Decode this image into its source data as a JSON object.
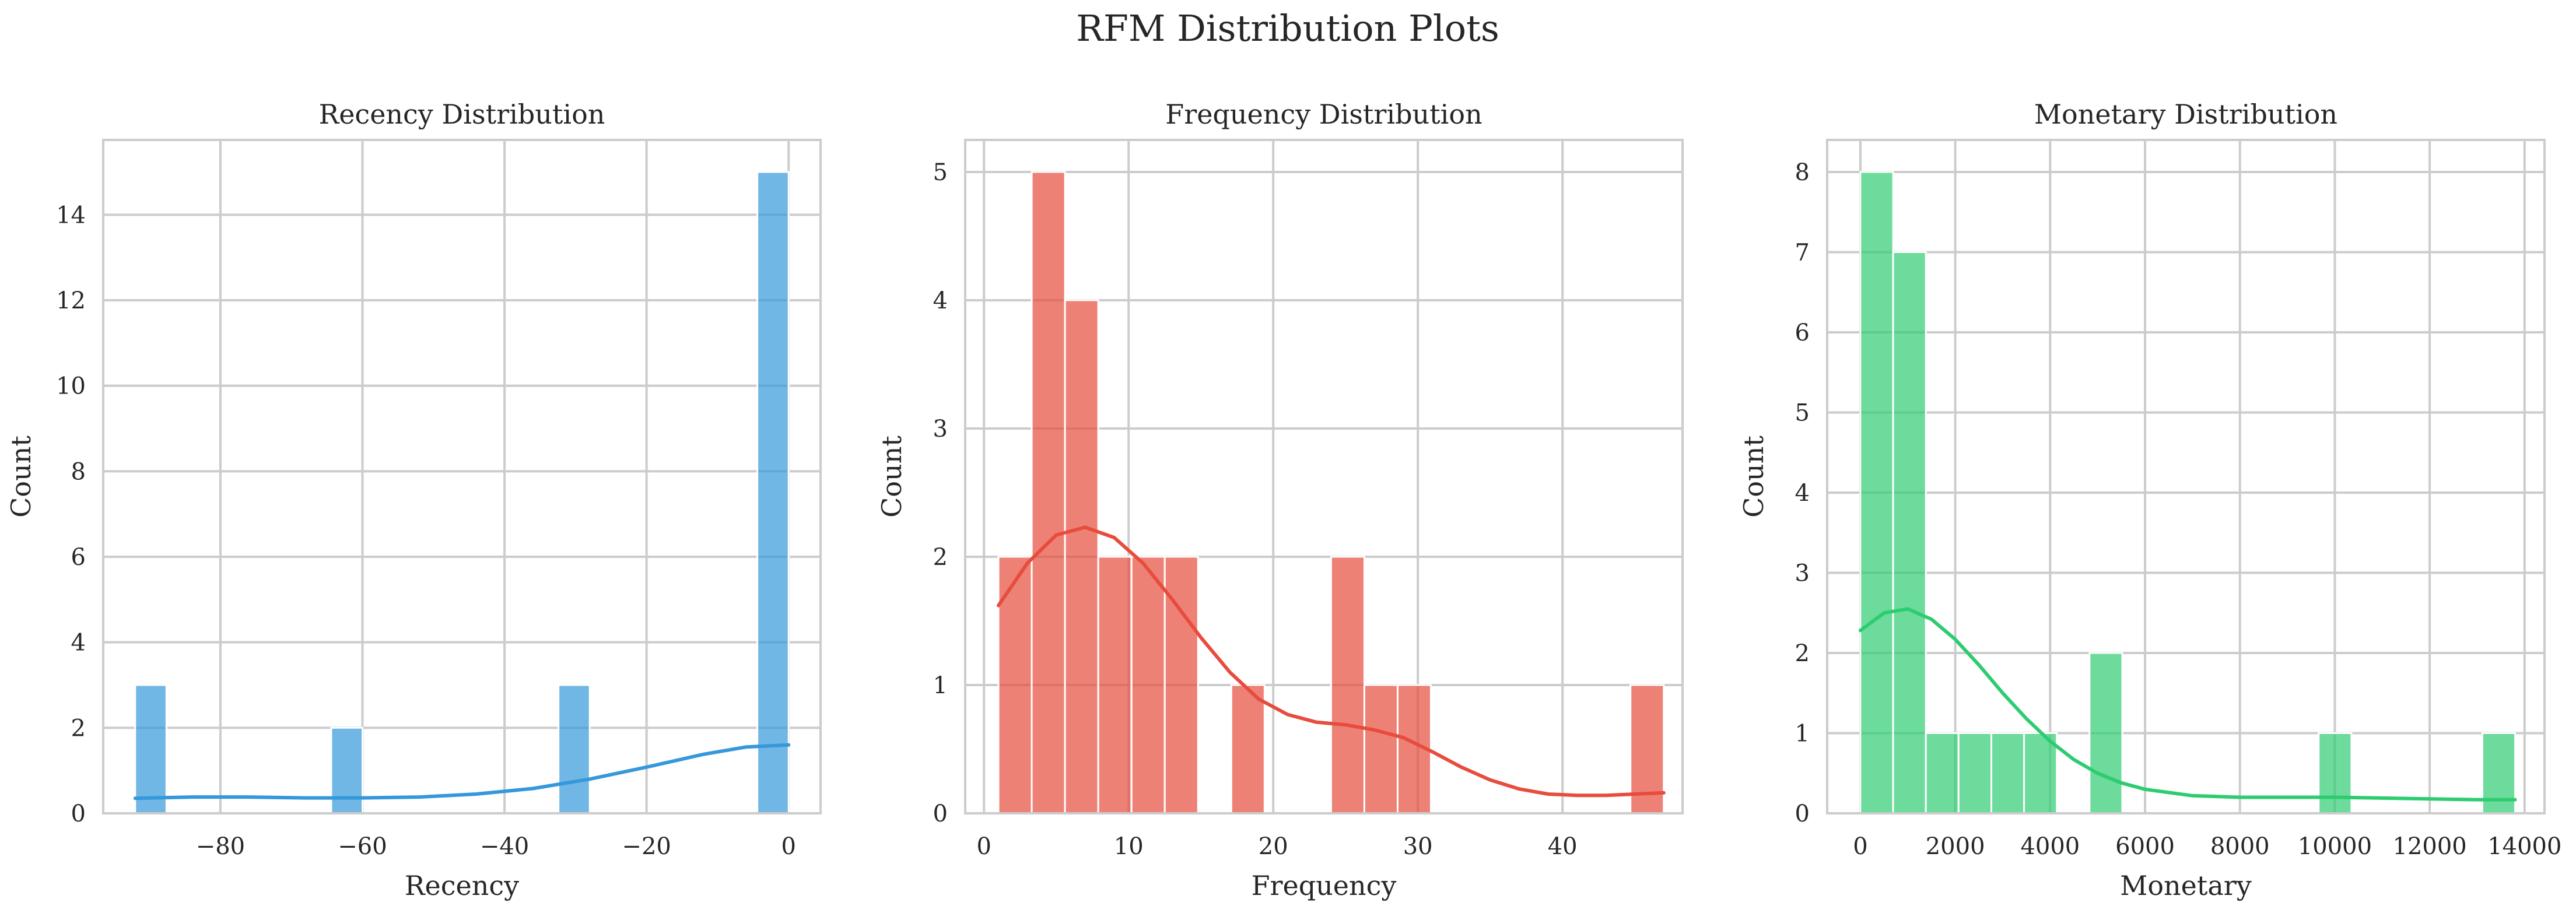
{
  "figure": {
    "title": "RFM Distribution Plots"
  },
  "chart_data": [
    {
      "type": "histogram",
      "title": "Recency Distribution",
      "xlabel": "Recency",
      "ylabel": "Count",
      "color": "#3498db",
      "xlim": [
        -96.5,
        4.5
      ],
      "ylim": [
        0,
        15.75
      ],
      "xticks": [
        -80,
        -60,
        -40,
        -20,
        0
      ],
      "xtick_labels": [
        "−80",
        "−60",
        "−40",
        "−20",
        "0"
      ],
      "yticks": [
        0,
        2,
        4,
        6,
        8,
        10,
        12,
        14
      ],
      "ytick_labels": [
        "0",
        "2",
        "4",
        "6",
        "8",
        "10",
        "12",
        "14"
      ],
      "bins": [
        {
          "x0": -92,
          "x1": -87.6,
          "count": 3
        },
        {
          "x0": -64.4,
          "x1": -60,
          "count": 2
        },
        {
          "x0": -32.4,
          "x1": -28,
          "count": 3
        },
        {
          "x0": -4.4,
          "x1": 0,
          "count": 15
        }
      ],
      "kde": [
        [
          -92,
          0.35
        ],
        [
          -84,
          0.38
        ],
        [
          -76,
          0.38
        ],
        [
          -68,
          0.36
        ],
        [
          -60,
          0.36
        ],
        [
          -52,
          0.38
        ],
        [
          -44,
          0.45
        ],
        [
          -36,
          0.58
        ],
        [
          -28,
          0.8
        ],
        [
          -20,
          1.08
        ],
        [
          -12,
          1.38
        ],
        [
          -6,
          1.55
        ],
        [
          0,
          1.6
        ]
      ]
    },
    {
      "type": "histogram",
      "title": "Frequency Distribution",
      "xlabel": "Frequency",
      "ylabel": "Count",
      "color": "#e74c3c",
      "xlim": [
        -1.3,
        48.3
      ],
      "ylim": [
        0,
        5.25
      ],
      "xticks": [
        0,
        10,
        20,
        30,
        40
      ],
      "xtick_labels": [
        "0",
        "10",
        "20",
        "30",
        "40"
      ],
      "yticks": [
        0,
        1,
        2,
        3,
        4,
        5
      ],
      "ytick_labels": [
        "0",
        "1",
        "2",
        "3",
        "4",
        "5"
      ],
      "bins": [
        {
          "x0": 1,
          "x1": 3.3,
          "count": 2
        },
        {
          "x0": 3.3,
          "x1": 5.6,
          "count": 5
        },
        {
          "x0": 5.6,
          "x1": 7.9,
          "count": 4
        },
        {
          "x0": 7.9,
          "x1": 10.2,
          "count": 2
        },
        {
          "x0": 10.2,
          "x1": 12.5,
          "count": 2
        },
        {
          "x0": 12.5,
          "x1": 14.8,
          "count": 2
        },
        {
          "x0": 17.1,
          "x1": 19.4,
          "count": 1
        },
        {
          "x0": 24.0,
          "x1": 26.3,
          "count": 2
        },
        {
          "x0": 26.3,
          "x1": 28.6,
          "count": 1
        },
        {
          "x0": 28.6,
          "x1": 30.9,
          "count": 1
        },
        {
          "x0": 44.7,
          "x1": 47.0,
          "count": 1
        }
      ],
      "kde": [
        [
          1,
          1.62
        ],
        [
          3,
          1.95
        ],
        [
          5,
          2.17
        ],
        [
          7,
          2.23
        ],
        [
          9,
          2.15
        ],
        [
          11,
          1.95
        ],
        [
          13,
          1.67
        ],
        [
          15,
          1.37
        ],
        [
          17,
          1.1
        ],
        [
          19,
          0.89
        ],
        [
          21,
          0.77
        ],
        [
          23,
          0.71
        ],
        [
          25,
          0.69
        ],
        [
          27,
          0.65
        ],
        [
          29,
          0.59
        ],
        [
          31,
          0.48
        ],
        [
          33,
          0.36
        ],
        [
          35,
          0.26
        ],
        [
          37,
          0.19
        ],
        [
          39,
          0.15
        ],
        [
          41,
          0.14
        ],
        [
          43,
          0.14
        ],
        [
          45,
          0.15
        ],
        [
          47,
          0.16
        ]
      ]
    },
    {
      "type": "histogram",
      "title": "Monetary Distribution",
      "xlabel": "Monetary",
      "ylabel": "Count",
      "color": "#2ecc71",
      "xlim": [
        -700,
        14420
      ],
      "ylim": [
        0,
        8.4
      ],
      "xticks": [
        0,
        2000,
        4000,
        6000,
        8000,
        10000,
        12000,
        14000
      ],
      "xtick_labels": [
        "0",
        "2000",
        "4000",
        "6000",
        "8000",
        "10000",
        "12000",
        "14000"
      ],
      "yticks": [
        0,
        1,
        2,
        3,
        4,
        5,
        6,
        7,
        8
      ],
      "ytick_labels": [
        "0",
        "1",
        "2",
        "3",
        "4",
        "5",
        "6",
        "7",
        "8"
      ],
      "bins": [
        {
          "x0": 0,
          "x1": 690,
          "count": 8
        },
        {
          "x0": 690,
          "x1": 1380,
          "count": 7
        },
        {
          "x0": 1380,
          "x1": 2070,
          "count": 1
        },
        {
          "x0": 2070,
          "x1": 2760,
          "count": 1
        },
        {
          "x0": 2760,
          "x1": 3450,
          "count": 1
        },
        {
          "x0": 3450,
          "x1": 4140,
          "count": 1
        },
        {
          "x0": 4830,
          "x1": 5520,
          "count": 2
        },
        {
          "x0": 9660,
          "x1": 10350,
          "count": 1
        },
        {
          "x0": 13110,
          "x1": 13800,
          "count": 1
        }
      ],
      "kde": [
        [
          0,
          2.28
        ],
        [
          500,
          2.5
        ],
        [
          1000,
          2.55
        ],
        [
          1500,
          2.42
        ],
        [
          2000,
          2.17
        ],
        [
          2500,
          1.85
        ],
        [
          3000,
          1.5
        ],
        [
          3500,
          1.18
        ],
        [
          4000,
          0.9
        ],
        [
          4500,
          0.67
        ],
        [
          5000,
          0.5
        ],
        [
          5500,
          0.38
        ],
        [
          6000,
          0.3
        ],
        [
          7000,
          0.22
        ],
        [
          8000,
          0.2
        ],
        [
          9000,
          0.2
        ],
        [
          10000,
          0.2
        ],
        [
          11000,
          0.19
        ],
        [
          12000,
          0.18
        ],
        [
          13000,
          0.17
        ],
        [
          13800,
          0.17
        ]
      ]
    }
  ]
}
